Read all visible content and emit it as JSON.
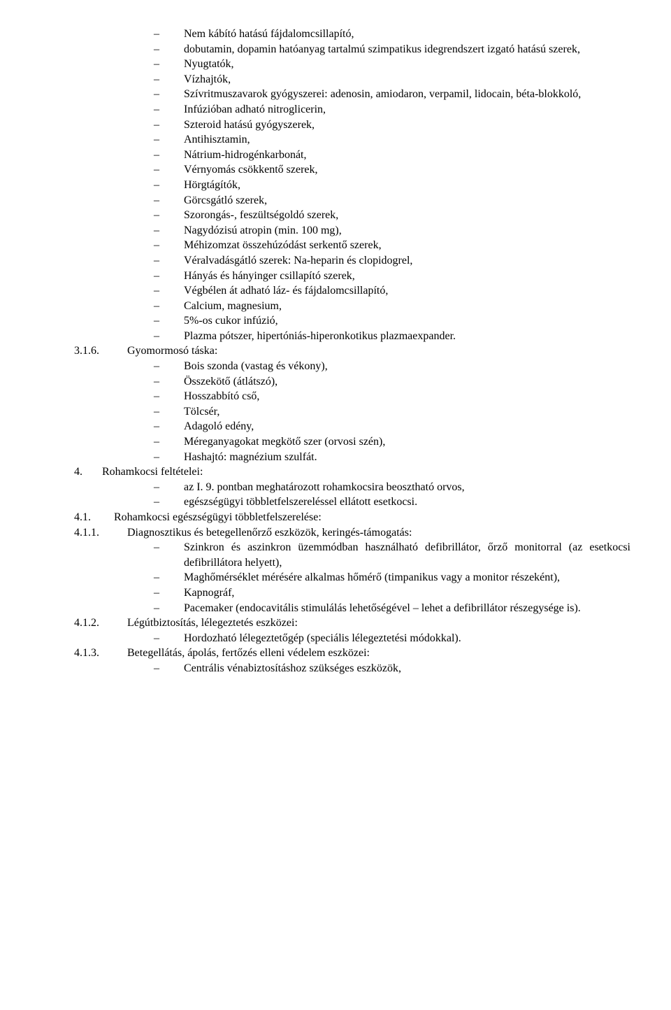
{
  "block315": {
    "items": [
      "Nem kábító hatású fájdalomcsillapító,",
      "dobutamin, dopamin hatóanyag tartalmú szimpatikus idegrendszert izgató hatású szerek,",
      "Nyugtatók,",
      "Vízhajtók,",
      "Szívritmuszavarok gyógyszerei: adenosin, amiodaron, verpamil, lidocain, béta-blokkoló,",
      "Infúzióban adható nitroglicerin,",
      "Szteroid hatású gyógyszerek,",
      "Antihisztamin,",
      "Nátrium-hidrogénkarbonát,",
      "Vérnyomás csökkentő szerek,",
      "Hörgtágítók,",
      "Görcsgátló szerek,",
      "Szorongás-, feszültségoldó szerek,",
      "Nagydózisú atropin (min. 100 mg),",
      "Méhizomzat összehúzódást serkentő szerek,",
      "Véralvadásgátló szerek: Na-heparin és clopidogrel,",
      "Hányás és hányinger csillapító szerek,",
      "Végbélen át adható láz- és fájdalomcsillapító,",
      "Calcium, magnesium,",
      "5%-os cukor infúzió,",
      "Plazma pótszer, hipertóniás-hiperonkotikus plazmaexpander."
    ]
  },
  "h316": {
    "num": "3.1.6.",
    "text": "Gyomormosó táska:"
  },
  "block316": {
    "items": [
      "Bois szonda (vastag és vékony),",
      "Összekötő (átlátszó),",
      "Hosszabbító cső,",
      "Tölcsér,",
      "Adagoló edény,",
      "Méreganyagokat megkötő szer (orvosi szén),",
      "Hashajtó: magnézium szulfát."
    ]
  },
  "h4": {
    "num": "4.",
    "text": "Rohamkocsi feltételei:"
  },
  "block4": {
    "items": [
      "az I. 9. pontban meghatározott rohamkocsira beosztható orvos,",
      "egészségügyi többletfelszereléssel ellátott esetkocsi."
    ]
  },
  "h41": {
    "num": "4.1.",
    "text": "Rohamkocsi egészségügyi többletfelszerelése:"
  },
  "h411": {
    "num": "4.1.1.",
    "text": "Diagnosztikus és betegellenőrző eszközök, keringés-támogatás:"
  },
  "block411": {
    "items": [
      "Szinkron és aszinkron üzemmódban használható defibrillátor, őrző monitorral (az esetkocsi defibrillátora helyett),",
      "Maghőmérséklet mérésére alkalmas hőmérő (timpanikus vagy a monitor részeként),",
      "Kapnográf,",
      "Pacemaker (endocavitális stimulálás lehetőségével – lehet a defibrillátor részegysége is)."
    ]
  },
  "h412": {
    "num": "4.1.2.",
    "text": "Légútbiztosítás, lélegeztetés eszközei:"
  },
  "block412": {
    "items": [
      "Hordozható lélegeztetőgép (speciális lélegeztetési módokkal)."
    ]
  },
  "h413": {
    "num": "4.1.3.",
    "text": "Betegellátás, ápolás, fertőzés elleni védelem eszközei:"
  },
  "block413": {
    "items": [
      "Centrális vénabiztosításhoz szükséges eszközök,"
    ]
  }
}
